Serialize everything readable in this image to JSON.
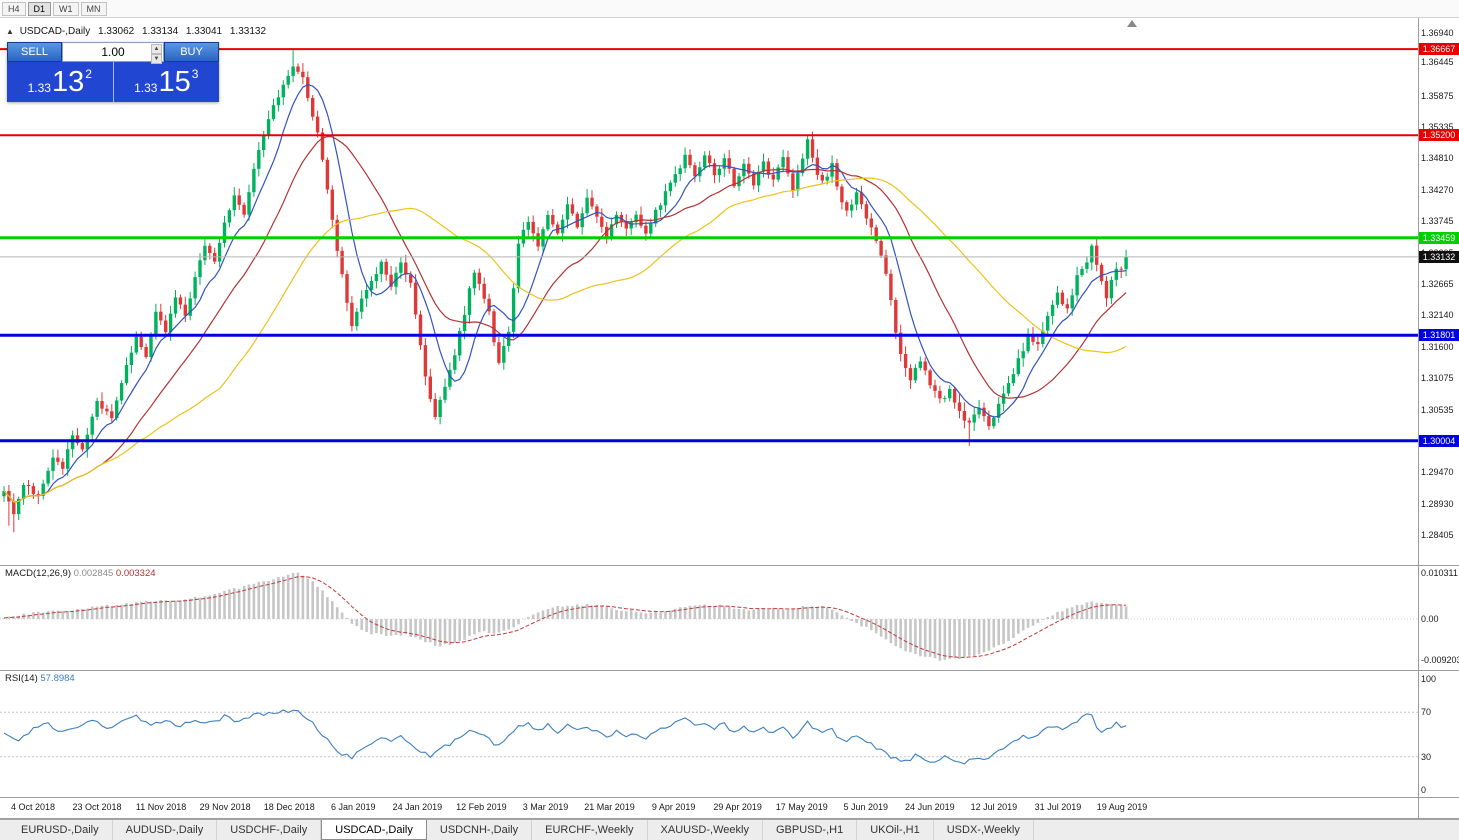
{
  "window": {
    "timeframe_buttons": [
      "H4",
      "D1",
      "W1",
      "MN"
    ],
    "active_timeframe": "D1"
  },
  "chart_header": {
    "collapse_icon": "▲",
    "symbol_title": "USDCAD-,Daily",
    "open": "1.33062",
    "high": "1.33134",
    "low": "1.33041",
    "close": "1.33132"
  },
  "trade_panel": {
    "sell_label": "SELL",
    "buy_label": "BUY",
    "volume": "1.00",
    "spinner_up_icon": "▲",
    "spinner_down_icon": "▼",
    "sell_price": {
      "prefix": "1.33",
      "pips": "13",
      "point": "2"
    },
    "buy_price": {
      "prefix": "1.33",
      "pips": "15",
      "point": "3"
    }
  },
  "chart_data": {
    "type": "candlestick",
    "symbol": "USDCAD",
    "timeframe": "Daily",
    "candles": 230,
    "up_color": "#00B25D",
    "down_color": "#DE3838",
    "price_axis_labels": [
      "1.36940",
      "1.36445",
      "1.35875",
      "1.35335",
      "1.34810",
      "1.34270",
      "1.33745",
      "1.33205",
      "1.32665",
      "1.32140",
      "1.31600",
      "1.31075",
      "1.30535",
      "1.30010",
      "1.29470",
      "1.28930",
      "1.28405"
    ],
    "date_labels": [
      "4 Oct 2018",
      "23 Oct 2018",
      "11 Nov 2018",
      "29 Nov 2018",
      "18 Dec 2018",
      "6 Jan 2019",
      "24 Jan 2019",
      "12 Feb 2019",
      "3 Mar 2019",
      "21 Mar 2019",
      "9 Apr 2019",
      "29 Apr 2019",
      "17 May 2019",
      "5 Jun 2019",
      "24 Jun 2019",
      "12 Jul 2019",
      "31 Jul 2019",
      "19 Aug 2019"
    ],
    "levels": [
      {
        "price": 1.36667,
        "label": "1.36667",
        "color": "#e80000",
        "width": 2
      },
      {
        "price": 1.352,
        "label": "1.35200",
        "color": "#e80000",
        "width": 2
      },
      {
        "price": 1.33459,
        "label": "1.33459",
        "color": "#00d000",
        "width": 3
      },
      {
        "price": 1.31801,
        "label": "1.31801",
        "color": "#0000e0",
        "width": 3
      },
      {
        "price": 1.30004,
        "label": "1.30004",
        "color": "#0000e0",
        "width": 3
      }
    ],
    "bid": {
      "price": 1.33132,
      "label": "1.33132"
    },
    "moving_averages": [
      {
        "name": "ma-fast",
        "period": 8,
        "color": "#3353BE"
      },
      {
        "name": "ma-mid",
        "period": 21,
        "color": "#B23333"
      },
      {
        "name": "ma-slow",
        "period": 45,
        "color": "#EDC21A"
      }
    ],
    "close_anchors": [
      [
        0,
        1.292
      ],
      [
        2,
        1.2875
      ],
      [
        4,
        1.293
      ],
      [
        7,
        1.2905
      ],
      [
        10,
        1.2975
      ],
      [
        12,
        1.2955
      ],
      [
        14,
        1.301
      ],
      [
        16,
        1.2985
      ],
      [
        19,
        1.3065
      ],
      [
        22,
        1.304
      ],
      [
        25,
        1.3125
      ],
      [
        27,
        1.318
      ],
      [
        29,
        1.314
      ],
      [
        31,
        1.3215
      ],
      [
        33,
        1.3185
      ],
      [
        35,
        1.3245
      ],
      [
        37,
        1.321
      ],
      [
        39,
        1.328
      ],
      [
        41,
        1.333
      ],
      [
        43,
        1.33
      ],
      [
        45,
        1.337
      ],
      [
        47,
        1.342
      ],
      [
        49,
        1.339
      ],
      [
        51,
        1.346
      ],
      [
        53,
        1.352
      ],
      [
        55,
        1.357
      ],
      [
        57,
        1.361
      ],
      [
        59,
        1.364
      ],
      [
        61,
        1.3615
      ],
      [
        62,
        1.358
      ],
      [
        64,
        1.353
      ],
      [
        65,
        1.3475
      ],
      [
        66,
        1.3425
      ],
      [
        67,
        1.3375
      ],
      [
        68,
        1.3325
      ],
      [
        69,
        1.3285
      ],
      [
        70,
        1.3235
      ],
      [
        71,
        1.3195
      ],
      [
        73,
        1.324
      ],
      [
        75,
        1.327
      ],
      [
        77,
        1.33
      ],
      [
        79,
        1.3262
      ],
      [
        81,
        1.3308
      ],
      [
        83,
        1.3268
      ],
      [
        84,
        1.3218
      ],
      [
        85,
        1.3158
      ],
      [
        86,
        1.3108
      ],
      [
        87,
        1.3068
      ],
      [
        88,
        1.3045
      ],
      [
        90,
        1.309
      ],
      [
        92,
        1.315
      ],
      [
        94,
        1.322
      ],
      [
        96,
        1.329
      ],
      [
        97,
        1.3268
      ],
      [
        99,
        1.3218
      ],
      [
        100,
        1.3168
      ],
      [
        101,
        1.3128
      ],
      [
        103,
        1.319
      ],
      [
        104,
        1.3262
      ],
      [
        105,
        1.3338
      ],
      [
        107,
        1.3372
      ],
      [
        109,
        1.333
      ],
      [
        111,
        1.338
      ],
      [
        113,
        1.3352
      ],
      [
        115,
        1.34
      ],
      [
        117,
        1.3368
      ],
      [
        119,
        1.341
      ],
      [
        121,
        1.3378
      ],
      [
        123,
        1.3348
      ],
      [
        125,
        1.339
      ],
      [
        127,
        1.3358
      ],
      [
        129,
        1.3386
      ],
      [
        131,
        1.335
      ],
      [
        133,
        1.339
      ],
      [
        135,
        1.342
      ],
      [
        137,
        1.345
      ],
      [
        139,
        1.3482
      ],
      [
        141,
        1.3452
      ],
      [
        143,
        1.3486
      ],
      [
        145,
        1.3452
      ],
      [
        147,
        1.348
      ],
      [
        149,
        1.3438
      ],
      [
        151,
        1.347
      ],
      [
        153,
        1.3438
      ],
      [
        155,
        1.3474
      ],
      [
        157,
        1.3442
      ],
      [
        159,
        1.348
      ],
      [
        161,
        1.3428
      ],
      [
        163,
        1.3478
      ],
      [
        164,
        1.3512
      ],
      [
        165,
        1.3478
      ],
      [
        167,
        1.3438
      ],
      [
        169,
        1.3468
      ],
      [
        170,
        1.3428
      ],
      [
        172,
        1.3388
      ],
      [
        174,
        1.3418
      ],
      [
        176,
        1.3378
      ],
      [
        178,
        1.3338
      ],
      [
        180,
        1.3288
      ],
      [
        181,
        1.3238
      ],
      [
        182,
        1.3188
      ],
      [
        183,
        1.3148
      ],
      [
        185,
        1.3108
      ],
      [
        187,
        1.3138
      ],
      [
        189,
        1.3098
      ],
      [
        191,
        1.3068
      ],
      [
        193,
        1.3088
      ],
      [
        195,
        1.3048
      ],
      [
        197,
        1.3028
      ],
      [
        199,
        1.3052
      ],
      [
        201,
        1.3022
      ],
      [
        203,
        1.3058
      ],
      [
        205,
        1.3098
      ],
      [
        207,
        1.3138
      ],
      [
        209,
        1.3178
      ],
      [
        211,
        1.3162
      ],
      [
        213,
        1.3208
      ],
      [
        215,
        1.3248
      ],
      [
        217,
        1.3228
      ],
      [
        219,
        1.3278
      ],
      [
        221,
        1.3308
      ],
      [
        222,
        1.3328
      ],
      [
        223,
        1.3298
      ],
      [
        224,
        1.3268
      ],
      [
        225,
        1.3242
      ],
      [
        226,
        1.3278
      ],
      [
        227,
        1.3298
      ],
      [
        228,
        1.3288
      ],
      [
        229,
        1.33132
      ]
    ],
    "wick_overrides": {
      "1": {
        "low": 1.2856
      },
      "2": {
        "low": 1.2845
      },
      "59": {
        "high": 1.3665
      },
      "164": {
        "high": 1.35215
      },
      "197": {
        "low": 1.2992
      }
    },
    "macd": {
      "name": "MACD(12,26,9)",
      "value_main": "0.002845",
      "value_signal": "0.003324",
      "axis": [
        "0.010311",
        "0.00",
        "-0.009203"
      ],
      "hist_color": "#C6C6C6",
      "signal_color": "#C23A3A",
      "main_anchors": [
        [
          0,
          0.0005
        ],
        [
          5,
          0.0012
        ],
        [
          10,
          0.0018
        ],
        [
          15,
          0.0022
        ],
        [
          20,
          0.0028
        ],
        [
          25,
          0.0035
        ],
        [
          30,
          0.004
        ],
        [
          35,
          0.0042
        ],
        [
          40,
          0.005
        ],
        [
          45,
          0.0062
        ],
        [
          50,
          0.0075
        ],
        [
          55,
          0.009
        ],
        [
          58,
          0.01
        ],
        [
          60,
          0.0103
        ],
        [
          63,
          0.0085
        ],
        [
          66,
          0.005
        ],
        [
          69,
          0.0015
        ],
        [
          71,
          -0.001
        ],
        [
          74,
          -0.003
        ],
        [
          78,
          -0.0038
        ],
        [
          82,
          -0.0035
        ],
        [
          86,
          -0.0052
        ],
        [
          89,
          -0.006
        ],
        [
          92,
          -0.0055
        ],
        [
          95,
          -0.004
        ],
        [
          98,
          -0.0028
        ],
        [
          101,
          -0.0032
        ],
        [
          104,
          -0.002
        ],
        [
          107,
          0.0005
        ],
        [
          110,
          0.002
        ],
        [
          113,
          0.0028
        ],
        [
          116,
          0.003
        ],
        [
          119,
          0.0032
        ],
        [
          122,
          0.0028
        ],
        [
          125,
          0.0022
        ],
        [
          128,
          0.0018
        ],
        [
          131,
          0.0012
        ],
        [
          134,
          0.0015
        ],
        [
          137,
          0.0022
        ],
        [
          140,
          0.003
        ],
        [
          143,
          0.0032
        ],
        [
          146,
          0.003
        ],
        [
          149,
          0.0024
        ],
        [
          152,
          0.002
        ],
        [
          155,
          0.0022
        ],
        [
          158,
          0.0024
        ],
        [
          161,
          0.0022
        ],
        [
          164,
          0.003
        ],
        [
          167,
          0.0028
        ],
        [
          170,
          0.0015
        ],
        [
          173,
          -0.0005
        ],
        [
          176,
          -0.002
        ],
        [
          179,
          -0.004
        ],
        [
          182,
          -0.006
        ],
        [
          185,
          -0.0075
        ],
        [
          188,
          -0.0085
        ],
        [
          191,
          -0.0092
        ],
        [
          194,
          -0.009
        ],
        [
          197,
          -0.0085
        ],
        [
          200,
          -0.0075
        ],
        [
          203,
          -0.006
        ],
        [
          206,
          -0.004
        ],
        [
          209,
          -0.002
        ],
        [
          212,
          0.0
        ],
        [
          215,
          0.0015
        ],
        [
          218,
          0.0028
        ],
        [
          221,
          0.0036
        ],
        [
          224,
          0.0038
        ],
        [
          227,
          0.0032
        ],
        [
          229,
          0.0028
        ]
      ]
    },
    "rsi": {
      "name": "RSI(14)",
      "value": "57.8984",
      "axis": [
        "100",
        "70",
        "30",
        "0"
      ],
      "levels": [
        70,
        30
      ],
      "color": "#3D7FBF",
      "anchors": [
        [
          0,
          52
        ],
        [
          3,
          45
        ],
        [
          6,
          55
        ],
        [
          9,
          60
        ],
        [
          12,
          52
        ],
        [
          15,
          58
        ],
        [
          18,
          63
        ],
        [
          21,
          55
        ],
        [
          24,
          62
        ],
        [
          27,
          66
        ],
        [
          30,
          58
        ],
        [
          33,
          62
        ],
        [
          36,
          57
        ],
        [
          39,
          64
        ],
        [
          42,
          60
        ],
        [
          45,
          66
        ],
        [
          48,
          62
        ],
        [
          51,
          67
        ],
        [
          54,
          70
        ],
        [
          57,
          72
        ],
        [
          59,
          71
        ],
        [
          61,
          68
        ],
        [
          63,
          60
        ],
        [
          65,
          50
        ],
        [
          67,
          40
        ],
        [
          69,
          33
        ],
        [
          71,
          30
        ],
        [
          73,
          38
        ],
        [
          75,
          43
        ],
        [
          77,
          48
        ],
        [
          79,
          42
        ],
        [
          81,
          50
        ],
        [
          83,
          42
        ],
        [
          85,
          34
        ],
        [
          87,
          30
        ],
        [
          89,
          36
        ],
        [
          91,
          42
        ],
        [
          93,
          48
        ],
        [
          95,
          55
        ],
        [
          97,
          52
        ],
        [
          99,
          45
        ],
        [
          101,
          40
        ],
        [
          103,
          48
        ],
        [
          105,
          58
        ],
        [
          107,
          60
        ],
        [
          109,
          54
        ],
        [
          111,
          58
        ],
        [
          113,
          53
        ],
        [
          115,
          58
        ],
        [
          117,
          53
        ],
        [
          119,
          58
        ],
        [
          121,
          52
        ],
        [
          123,
          48
        ],
        [
          125,
          53
        ],
        [
          127,
          49
        ],
        [
          129,
          52
        ],
        [
          131,
          47
        ],
        [
          133,
          52
        ],
        [
          135,
          56
        ],
        [
          137,
          60
        ],
        [
          139,
          63
        ],
        [
          141,
          58
        ],
        [
          143,
          61
        ],
        [
          145,
          56
        ],
        [
          147,
          59
        ],
        [
          149,
          52
        ],
        [
          151,
          56
        ],
        [
          153,
          51
        ],
        [
          155,
          56
        ],
        [
          157,
          51
        ],
        [
          159,
          57
        ],
        [
          161,
          48
        ],
        [
          163,
          56
        ],
        [
          164,
          62
        ],
        [
          165,
          56
        ],
        [
          167,
          50
        ],
        [
          169,
          55
        ],
        [
          170,
          49
        ],
        [
          172,
          44
        ],
        [
          174,
          49
        ],
        [
          176,
          43
        ],
        [
          178,
          38
        ],
        [
          180,
          33
        ],
        [
          182,
          28
        ],
        [
          184,
          26
        ],
        [
          186,
          31
        ],
        [
          188,
          27
        ],
        [
          190,
          25
        ],
        [
          192,
          30
        ],
        [
          194,
          27
        ],
        [
          196,
          25
        ],
        [
          198,
          29
        ],
        [
          200,
          26
        ],
        [
          202,
          32
        ],
        [
          204,
          38
        ],
        [
          206,
          44
        ],
        [
          208,
          50
        ],
        [
          210,
          47
        ],
        [
          212,
          53
        ],
        [
          214,
          58
        ],
        [
          216,
          54
        ],
        [
          218,
          60
        ],
        [
          220,
          65
        ],
        [
          221,
          70
        ],
        [
          222,
          66
        ],
        [
          223,
          58
        ],
        [
          224,
          52
        ],
        [
          226,
          55
        ],
        [
          227,
          60
        ],
        [
          228,
          55
        ],
        [
          229,
          57.9
        ]
      ]
    }
  },
  "tabs": {
    "items": [
      "EURUSD-,Daily",
      "AUDUSD-,Daily",
      "USDCHF-,Daily",
      "USDCAD-,Daily",
      "USDCNH-,Daily",
      "EURCHF-,Weekly",
      "XAUUSD-,Weekly",
      "GBPUSD-,H1",
      "UKOil-,H1",
      "USDX-,Weekly"
    ],
    "active": "USDCAD-,Daily"
  }
}
